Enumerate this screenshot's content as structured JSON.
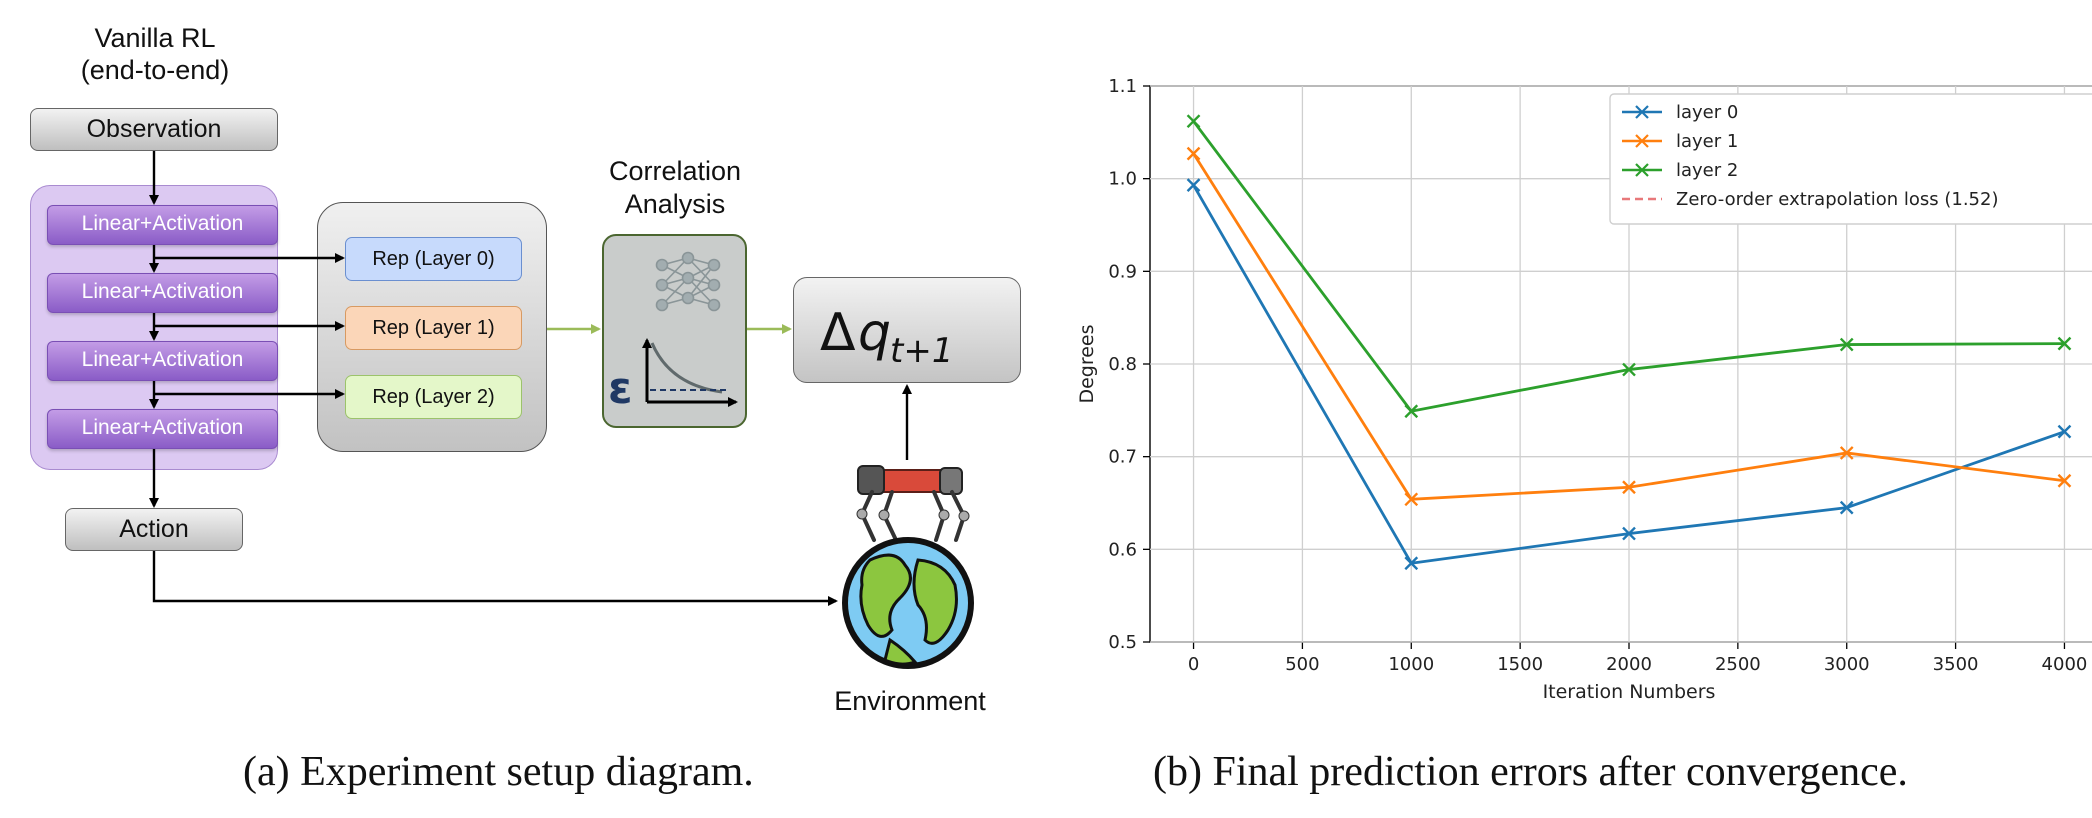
{
  "diagram": {
    "vanilla_title_1": "Vanilla RL",
    "vanilla_title_2": "(end-to-end)",
    "observation": "Observation",
    "layers": [
      "Linear+Activation",
      "Linear+Activation",
      "Linear+Activation",
      "Linear+Activation"
    ],
    "action": "Action",
    "reps": [
      "Rep (Layer 0)",
      "Rep (Layer 1)",
      "Rep (Layer 2)"
    ],
    "correlation_1": "Correlation",
    "correlation_2": "Analysis",
    "epsilon": "ε",
    "environment": "Environment",
    "colors": {
      "purple_panel": "#dcc9f2",
      "linear_box": "#9b6fd6",
      "rep0": "#c7dafc",
      "rep1": "#fbd6b8",
      "rep2": "#e4f7c9",
      "arrow_green": "#9bbb59"
    }
  },
  "captions": {
    "a": "(a) Experiment setup diagram.",
    "b": "(b) Final prediction errors after convergence."
  },
  "chart_data": {
    "type": "line",
    "xlabel": "Iteration Numbers",
    "ylabel": "Degrees",
    "xlim": [
      -200,
      4200
    ],
    "ylim": [
      0.5,
      1.1
    ],
    "xticks": [
      0,
      500,
      1000,
      1500,
      2000,
      2500,
      3000,
      3500,
      4000
    ],
    "yticks": [
      0.5,
      0.6,
      0.7,
      0.8,
      0.9,
      1.0,
      1.1
    ],
    "grid": true,
    "legend_position": "top-right",
    "x": [
      0,
      1000,
      2000,
      3000,
      4000
    ],
    "series": [
      {
        "name": "layer 0",
        "color": "#1f77b4",
        "values": [
          0.993,
          0.585,
          0.617,
          0.645,
          0.727
        ]
      },
      {
        "name": "layer 1",
        "color": "#ff7f0e",
        "values": [
          1.027,
          0.654,
          0.667,
          0.704,
          0.674
        ]
      },
      {
        "name": "layer 2",
        "color": "#2ca02c",
        "values": [
          1.062,
          0.749,
          0.794,
          0.821,
          0.822
        ]
      }
    ],
    "reference": {
      "name": "Zero-order extrapolation loss (1.52)",
      "value": 1.52,
      "color": "#e8787a"
    }
  }
}
